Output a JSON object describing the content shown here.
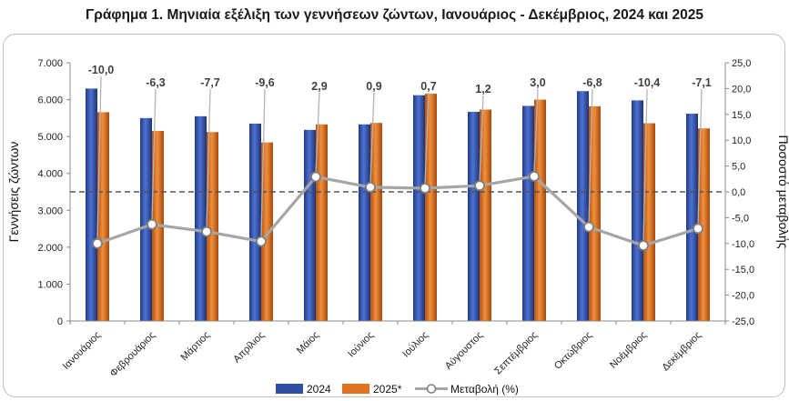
{
  "title": "Γράφημα 1. Μηνιαία εξέλιξη των γεννήσεων ζώντων, Ιανουάριος - Δεκέμβριος, 2024 και 2025",
  "chart_data": {
    "type": "bar",
    "categories": [
      "Ιανουάριος",
      "Φεβρουάριος",
      "Μάρτιος",
      "Απρίλιος",
      "Μάιος",
      "Ιούνιος",
      "Ιούλιος",
      "Αύγουστος",
      "Σεπτέμβριος",
      "Οκτώβριος",
      "Νοέμβριος",
      "Δεκέμβριος"
    ],
    "series": [
      {
        "name": "2024",
        "type": "bar",
        "axis": "left",
        "color": "#2f4fa6",
        "values": [
          6300,
          5500,
          5550,
          5350,
          5180,
          5330,
          6120,
          5670,
          5830,
          6230,
          5980,
          5620
        ]
      },
      {
        "name": "2025*",
        "type": "bar",
        "axis": "left",
        "color": "#e0731f",
        "values": [
          5660,
          5150,
          5120,
          4840,
          5330,
          5370,
          6160,
          5730,
          6000,
          5820,
          5360,
          5220
        ]
      },
      {
        "name": "Μεταβολή (%)",
        "type": "line",
        "axis": "right",
        "color": "#a6a6a6",
        "values": [
          -10.0,
          -6.3,
          -7.7,
          -9.6,
          2.9,
          0.9,
          0.7,
          1.2,
          3.0,
          -6.8,
          -10.4,
          -7.1
        ],
        "labels": [
          "-10,0",
          "-6,3",
          "-7,7",
          "-9,6",
          "2,9",
          "0,9",
          "0,7",
          "1,2",
          "3,0",
          "-6,8",
          "-10,4",
          "-7,1"
        ]
      }
    ],
    "y_left": {
      "label": "Γεννήσεις ζώντων",
      "min": 0,
      "max": 7000,
      "step": 1000,
      "ticks": [
        "0",
        "1.000",
        "2.000",
        "3.000",
        "4.000",
        "5.000",
        "6.000",
        "7.000"
      ]
    },
    "y_right": {
      "label": "Ποσοστό μεταβολής",
      "min": -25,
      "max": 25,
      "step": 5,
      "ticks": [
        "-25,0",
        "-20,0",
        "-15,0",
        "-10,0",
        "-5,0",
        "0,0",
        "5,0",
        "10,0",
        "15,0",
        "20,0",
        "25,0"
      ]
    },
    "reference_line": {
      "axis": "right",
      "value": 0,
      "style": "dashed",
      "color": "#555555"
    },
    "legend_position": "bottom",
    "grid": false
  }
}
